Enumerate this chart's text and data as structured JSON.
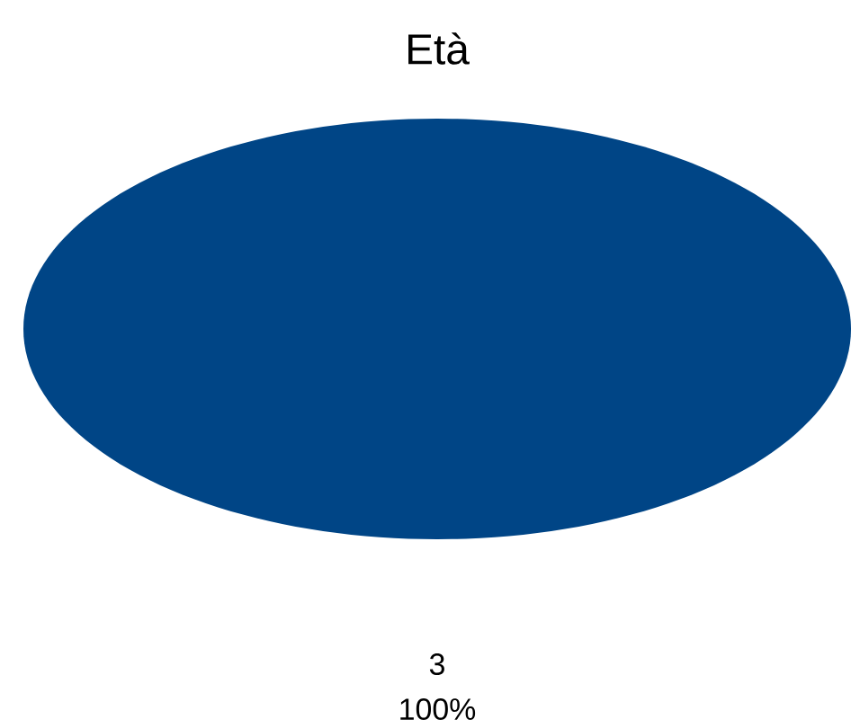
{
  "chart_data": {
    "type": "pie",
    "title": "Età",
    "categories": [
      null
    ],
    "values": [
      3
    ],
    "colors": [
      "#004586"
    ],
    "data_labels": true,
    "annotations": [
      "100%"
    ]
  }
}
